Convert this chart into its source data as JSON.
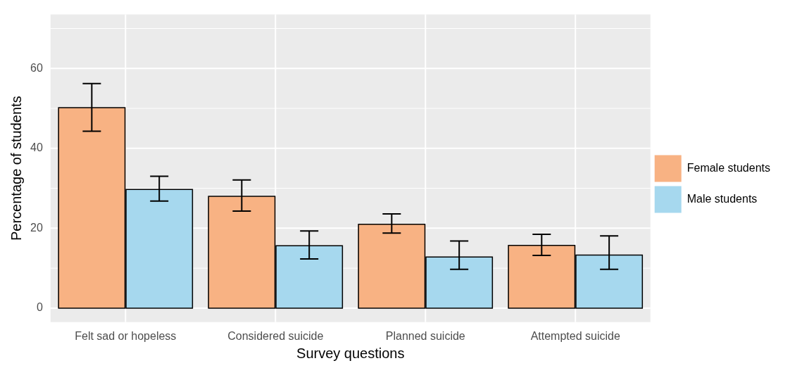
{
  "chart_data": {
    "type": "bar",
    "xlabel": "Survey questions",
    "ylabel": "Percentage of students",
    "categories": [
      "Felt sad or hopeless",
      "Considered suicide",
      "Planned suicide",
      "Attempted suicide"
    ],
    "series": [
      {
        "name": "Female students",
        "color": "#f8b283",
        "values": [
          50.2,
          28.0,
          21.0,
          15.7
        ],
        "errors": [
          [
            44.3,
            56.2
          ],
          [
            24.3,
            32.1
          ],
          [
            18.8,
            23.6
          ],
          [
            13.2,
            18.5
          ]
        ]
      },
      {
        "name": "Male students",
        "color": "#a6d8ee",
        "values": [
          29.7,
          15.6,
          12.8,
          13.3
        ],
        "errors": [
          [
            26.8,
            33.0
          ],
          [
            12.3,
            19.3
          ],
          [
            9.7,
            16.8
          ],
          [
            9.7,
            18.1
          ]
        ]
      }
    ],
    "ylim": [
      -3.5,
      73.5
    ],
    "yticks": [
      0,
      20,
      40,
      60
    ],
    "grid": true,
    "legend": "right"
  }
}
